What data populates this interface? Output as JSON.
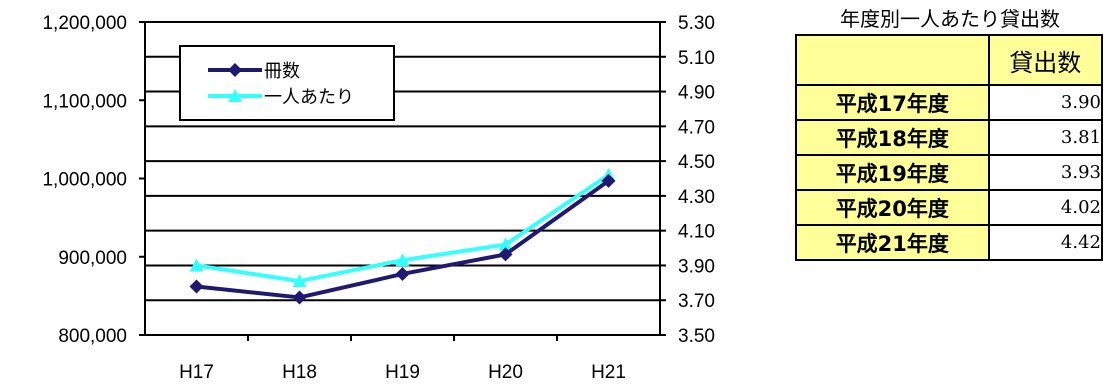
{
  "chart_data": {
    "type": "line",
    "categories": [
      "H17",
      "H18",
      "H19",
      "H20",
      "H21"
    ],
    "series": [
      {
        "name": "冊数",
        "axis": "left",
        "color": "#1F1A70",
        "marker": "diamond",
        "values": [
          862000,
          848000,
          878000,
          903000,
          997000
        ]
      },
      {
        "name": "一人あたり",
        "axis": "right",
        "color": "#33FFFF",
        "marker": "triangle",
        "values": [
          3.9,
          3.81,
          3.93,
          4.02,
          4.42
        ]
      }
    ],
    "y_left": {
      "ylim": [
        800000,
        1200000
      ],
      "ticks": [
        "800,000",
        "900,000",
        "1,000,000",
        "1,100,000",
        "1,200,000"
      ]
    },
    "y_right": {
      "ylim": [
        3.5,
        5.3
      ],
      "ticks": [
        "3.50",
        "3.70",
        "3.90",
        "4.10",
        "4.30",
        "4.50",
        "4.70",
        "4.90",
        "5.10",
        "5.30"
      ]
    },
    "grid": true,
    "legend": "top-left"
  },
  "table": {
    "title": "年度別一人あたり貸出数",
    "header": "貸出数",
    "rows": [
      {
        "label": "平成17年度",
        "value": "3.90"
      },
      {
        "label": "平成18年度",
        "value": "3.81"
      },
      {
        "label": "平成19年度",
        "value": "3.93"
      },
      {
        "label": "平成20年度",
        "value": "4.02"
      },
      {
        "label": "平成21年度",
        "value": "4.42"
      }
    ]
  }
}
